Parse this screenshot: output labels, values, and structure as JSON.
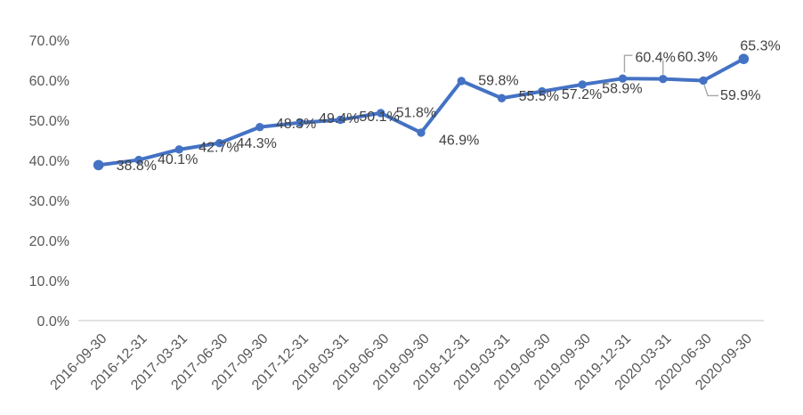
{
  "chart": {
    "colors": {
      "line": "#4472C4",
      "marker": "#4472C4",
      "data_label": "#404040",
      "axis_label": "#595959",
      "leader_line": "#A6A6A6",
      "axis_line": "#D9D9D9",
      "background": "#FFFFFF"
    }
  },
  "chart_data": {
    "type": "line",
    "title": "",
    "xlabel": "",
    "ylabel": "",
    "legend_position": "none",
    "grid": false,
    "ylim": [
      0,
      70
    ],
    "ytick_step": 10,
    "yticks": [
      "0.0%",
      "10.0%",
      "20.0%",
      "30.0%",
      "40.0%",
      "50.0%",
      "60.0%",
      "70.0%"
    ],
    "x": [
      "2016-09-30",
      "2016-12-31",
      "2017-03-31",
      "2017-06-30",
      "2017-09-30",
      "2017-12-31",
      "2018-03-31",
      "2018-06-30",
      "2018-09-30",
      "2018-12-31",
      "2019-03-31",
      "2019-06-30",
      "2019-09-30",
      "2019-12-31",
      "2020-03-31",
      "2020-06-30",
      "2020-09-30"
    ],
    "series": [
      {
        "name": "",
        "values": [
          38.8,
          40.1,
          42.7,
          44.3,
          48.3,
          49.4,
          50.1,
          51.8,
          46.9,
          59.8,
          55.5,
          57.2,
          58.9,
          60.4,
          60.3,
          59.9,
          65.3
        ]
      }
    ],
    "data_labels": [
      "38.8%",
      "40.1%",
      "42.7%",
      "44.3%",
      "48.3%",
      "49.4%",
      "50.1%",
      "51.8%",
      "46.9%",
      "59.8%",
      "55.5%",
      "57.2%",
      "58.9%",
      "60.4%",
      "60.3%",
      "59.9%",
      "65.3%"
    ]
  }
}
